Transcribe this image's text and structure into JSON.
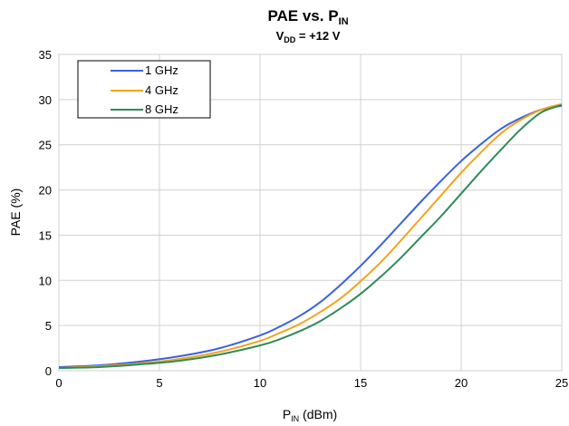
{
  "chart_data": {
    "type": "line",
    "title_main": "PAE vs. P",
    "title_main_sub": "IN",
    "subtitle_pre": "V",
    "subtitle_sub": "DD",
    "subtitle_post": " = +12 V",
    "xlabel_pre": "P",
    "xlabel_sub": "IN",
    "xlabel_post": " (dBm)",
    "ylabel": "PAE (%)",
    "xlim": [
      0,
      25
    ],
    "ylim": [
      0,
      35
    ],
    "xticks": [
      "0",
      "5",
      "10",
      "15",
      "20",
      "25"
    ],
    "yticks": [
      "0",
      "5",
      "10",
      "15",
      "20",
      "25",
      "30",
      "35"
    ],
    "grid": true,
    "legend_position": "top-left",
    "series": [
      {
        "name": "1 GHz",
        "color": "#3a62e0",
        "x": [
          0,
          2,
          4,
          6,
          8,
          10,
          11,
          12,
          13,
          14,
          15,
          16,
          17,
          18,
          19,
          20,
          21,
          22,
          23,
          24,
          25
        ],
        "y": [
          0.4,
          0.6,
          1.0,
          1.6,
          2.5,
          3.9,
          4.9,
          6.1,
          7.6,
          9.5,
          11.6,
          13.9,
          16.3,
          18.7,
          21.0,
          23.2,
          25.1,
          26.8,
          28.0,
          28.9,
          29.3
        ]
      },
      {
        "name": "4 GHz",
        "color": "#f5a31a",
        "x": [
          0,
          2,
          4,
          6,
          8,
          10,
          11,
          12,
          13,
          14,
          15,
          16,
          17,
          18,
          19,
          20,
          21,
          22,
          23,
          24,
          25
        ],
        "y": [
          0.3,
          0.5,
          0.8,
          1.3,
          2.1,
          3.3,
          4.2,
          5.2,
          6.5,
          8.0,
          9.9,
          12.0,
          14.4,
          16.9,
          19.4,
          21.9,
          24.2,
          26.3,
          27.8,
          28.9,
          29.5
        ]
      },
      {
        "name": "8 GHz",
        "color": "#2e8b57",
        "x": [
          0,
          2,
          4,
          6,
          8,
          10,
          11,
          12,
          13,
          14,
          15,
          16,
          17,
          18,
          19,
          20,
          21,
          22,
          23,
          24,
          25
        ],
        "y": [
          0.3,
          0.4,
          0.7,
          1.1,
          1.8,
          2.8,
          3.5,
          4.4,
          5.5,
          6.9,
          8.5,
          10.4,
          12.5,
          14.8,
          17.1,
          19.6,
          22.1,
          24.5,
          26.8,
          28.6,
          29.4
        ]
      }
    ]
  }
}
